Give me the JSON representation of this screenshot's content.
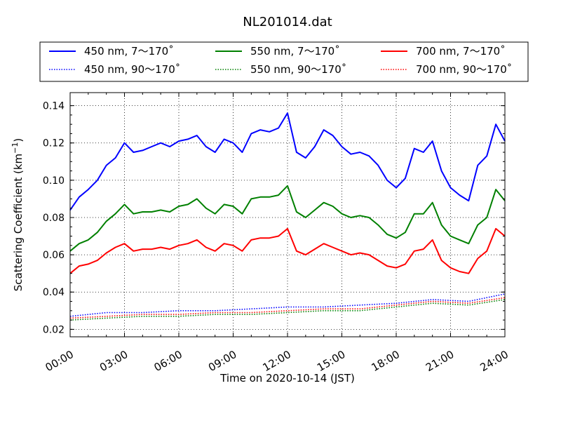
{
  "chart_data": {
    "type": "line",
    "title": "NL201014.dat",
    "xlabel": "Time on 2020-10-14 (JST)",
    "ylabel_main": "Scattering Coefficient (km",
    "ylabel_sup": "−1",
    "ylabel_tail": ")",
    "xlim": [
      "00:00",
      "24:00"
    ],
    "ylim": [
      0.016,
      0.147
    ],
    "x_ticks": [
      "00:00",
      "03:00",
      "06:00",
      "09:00",
      "12:00",
      "15:00",
      "18:00",
      "21:00",
      "24:00"
    ],
    "y_ticks": [
      "0.02",
      "0.04",
      "0.06",
      "0.08",
      "0.10",
      "0.12",
      "0.14"
    ],
    "grid": true,
    "legend_placement": "top",
    "series": [
      {
        "name": "450 nm, 7～170˚",
        "color": "#0000ff",
        "style": "solid",
        "x": [
          "00:00",
          "00:30",
          "01:00",
          "01:30",
          "02:00",
          "02:30",
          "03:00",
          "03:30",
          "04:00",
          "04:30",
          "05:00",
          "05:30",
          "06:00",
          "06:30",
          "07:00",
          "07:30",
          "08:00",
          "08:30",
          "09:00",
          "09:30",
          "10:00",
          "10:30",
          "11:00",
          "11:30",
          "12:00",
          "12:30",
          "13:00",
          "13:30",
          "14:00",
          "14:30",
          "15:00",
          "15:30",
          "16:00",
          "16:30",
          "17:00",
          "17:30",
          "18:00",
          "18:30",
          "19:00",
          "19:30",
          "20:00",
          "20:30",
          "21:00",
          "21:30",
          "22:00",
          "22:30",
          "23:00",
          "23:30",
          "24:00"
        ],
        "y": [
          0.084,
          0.091,
          0.095,
          0.1,
          0.108,
          0.112,
          0.12,
          0.115,
          0.116,
          0.118,
          0.12,
          0.118,
          0.121,
          0.122,
          0.124,
          0.118,
          0.115,
          0.122,
          0.12,
          0.115,
          0.125,
          0.127,
          0.126,
          0.128,
          0.136,
          0.115,
          0.112,
          0.118,
          0.127,
          0.124,
          0.118,
          0.114,
          0.115,
          0.113,
          0.108,
          0.1,
          0.096,
          0.101,
          0.117,
          0.115,
          0.121,
          0.105,
          0.096,
          0.092,
          0.089,
          0.108,
          0.113,
          0.13,
          0.121
        ]
      },
      {
        "name": "550 nm, 7～170˚",
        "color": "#008000",
        "style": "solid",
        "x": [
          "00:00",
          "00:30",
          "01:00",
          "01:30",
          "02:00",
          "02:30",
          "03:00",
          "03:30",
          "04:00",
          "04:30",
          "05:00",
          "05:30",
          "06:00",
          "06:30",
          "07:00",
          "07:30",
          "08:00",
          "08:30",
          "09:00",
          "09:30",
          "10:00",
          "10:30",
          "11:00",
          "11:30",
          "12:00",
          "12:30",
          "13:00",
          "13:30",
          "14:00",
          "14:30",
          "15:00",
          "15:30",
          "16:00",
          "16:30",
          "17:00",
          "17:30",
          "18:00",
          "18:30",
          "19:00",
          "19:30",
          "20:00",
          "20:30",
          "21:00",
          "21:30",
          "22:00",
          "22:30",
          "23:00",
          "23:30",
          "24:00"
        ],
        "y": [
          0.062,
          0.066,
          0.068,
          0.072,
          0.078,
          0.082,
          0.087,
          0.082,
          0.083,
          0.083,
          0.084,
          0.083,
          0.086,
          0.087,
          0.09,
          0.085,
          0.082,
          0.087,
          0.086,
          0.082,
          0.09,
          0.091,
          0.091,
          0.092,
          0.097,
          0.083,
          0.08,
          0.084,
          0.088,
          0.086,
          0.082,
          0.08,
          0.081,
          0.08,
          0.076,
          0.071,
          0.069,
          0.072,
          0.082,
          0.082,
          0.088,
          0.076,
          0.07,
          0.068,
          0.066,
          0.076,
          0.08,
          0.095,
          0.089
        ]
      },
      {
        "name": "700 nm, 7～170˚",
        "color": "#ff0000",
        "style": "solid",
        "x": [
          "00:00",
          "00:30",
          "01:00",
          "01:30",
          "02:00",
          "02:30",
          "03:00",
          "03:30",
          "04:00",
          "04:30",
          "05:00",
          "05:30",
          "06:00",
          "06:30",
          "07:00",
          "07:30",
          "08:00",
          "08:30",
          "09:00",
          "09:30",
          "10:00",
          "10:30",
          "11:00",
          "11:30",
          "12:00",
          "12:30",
          "13:00",
          "13:30",
          "14:00",
          "14:30",
          "15:00",
          "15:30",
          "16:00",
          "16:30",
          "17:00",
          "17:30",
          "18:00",
          "18:30",
          "19:00",
          "19:30",
          "20:00",
          "20:30",
          "21:00",
          "21:30",
          "22:00",
          "22:30",
          "23:00",
          "23:30",
          "24:00"
        ],
        "y": [
          0.05,
          0.054,
          0.055,
          0.057,
          0.061,
          0.064,
          0.066,
          0.062,
          0.063,
          0.063,
          0.064,
          0.063,
          0.065,
          0.066,
          0.068,
          0.064,
          0.062,
          0.066,
          0.065,
          0.062,
          0.068,
          0.069,
          0.069,
          0.07,
          0.074,
          0.062,
          0.06,
          0.063,
          0.066,
          0.064,
          0.062,
          0.06,
          0.061,
          0.06,
          0.057,
          0.054,
          0.053,
          0.055,
          0.062,
          0.063,
          0.068,
          0.057,
          0.053,
          0.051,
          0.05,
          0.058,
          0.062,
          0.074,
          0.07
        ]
      },
      {
        "name": "450 nm, 90～170˚",
        "color": "#0000ff",
        "style": "dotted",
        "x": [
          "00:00",
          "02:00",
          "04:00",
          "06:00",
          "08:00",
          "10:00",
          "12:00",
          "14:00",
          "16:00",
          "18:00",
          "20:00",
          "22:00",
          "24:00"
        ],
        "y": [
          0.027,
          0.029,
          0.029,
          0.03,
          0.03,
          0.031,
          0.032,
          0.032,
          0.033,
          0.034,
          0.036,
          0.035,
          0.039
        ]
      },
      {
        "name": "550 nm, 90～170˚",
        "color": "#008000",
        "style": "dotted",
        "x": [
          "00:00",
          "02:00",
          "04:00",
          "06:00",
          "08:00",
          "10:00",
          "12:00",
          "14:00",
          "16:00",
          "18:00",
          "20:00",
          "22:00",
          "24:00"
        ],
        "y": [
          0.025,
          0.026,
          0.027,
          0.027,
          0.028,
          0.028,
          0.029,
          0.03,
          0.03,
          0.032,
          0.034,
          0.033,
          0.036
        ]
      },
      {
        "name": "700 nm, 90～170˚",
        "color": "#ff0000",
        "style": "dotted",
        "x": [
          "00:00",
          "02:00",
          "04:00",
          "06:00",
          "08:00",
          "10:00",
          "12:00",
          "14:00",
          "16:00",
          "18:00",
          "20:00",
          "22:00",
          "24:00"
        ],
        "y": [
          0.026,
          0.027,
          0.028,
          0.028,
          0.029,
          0.029,
          0.03,
          0.031,
          0.031,
          0.033,
          0.035,
          0.034,
          0.037
        ]
      }
    ]
  }
}
